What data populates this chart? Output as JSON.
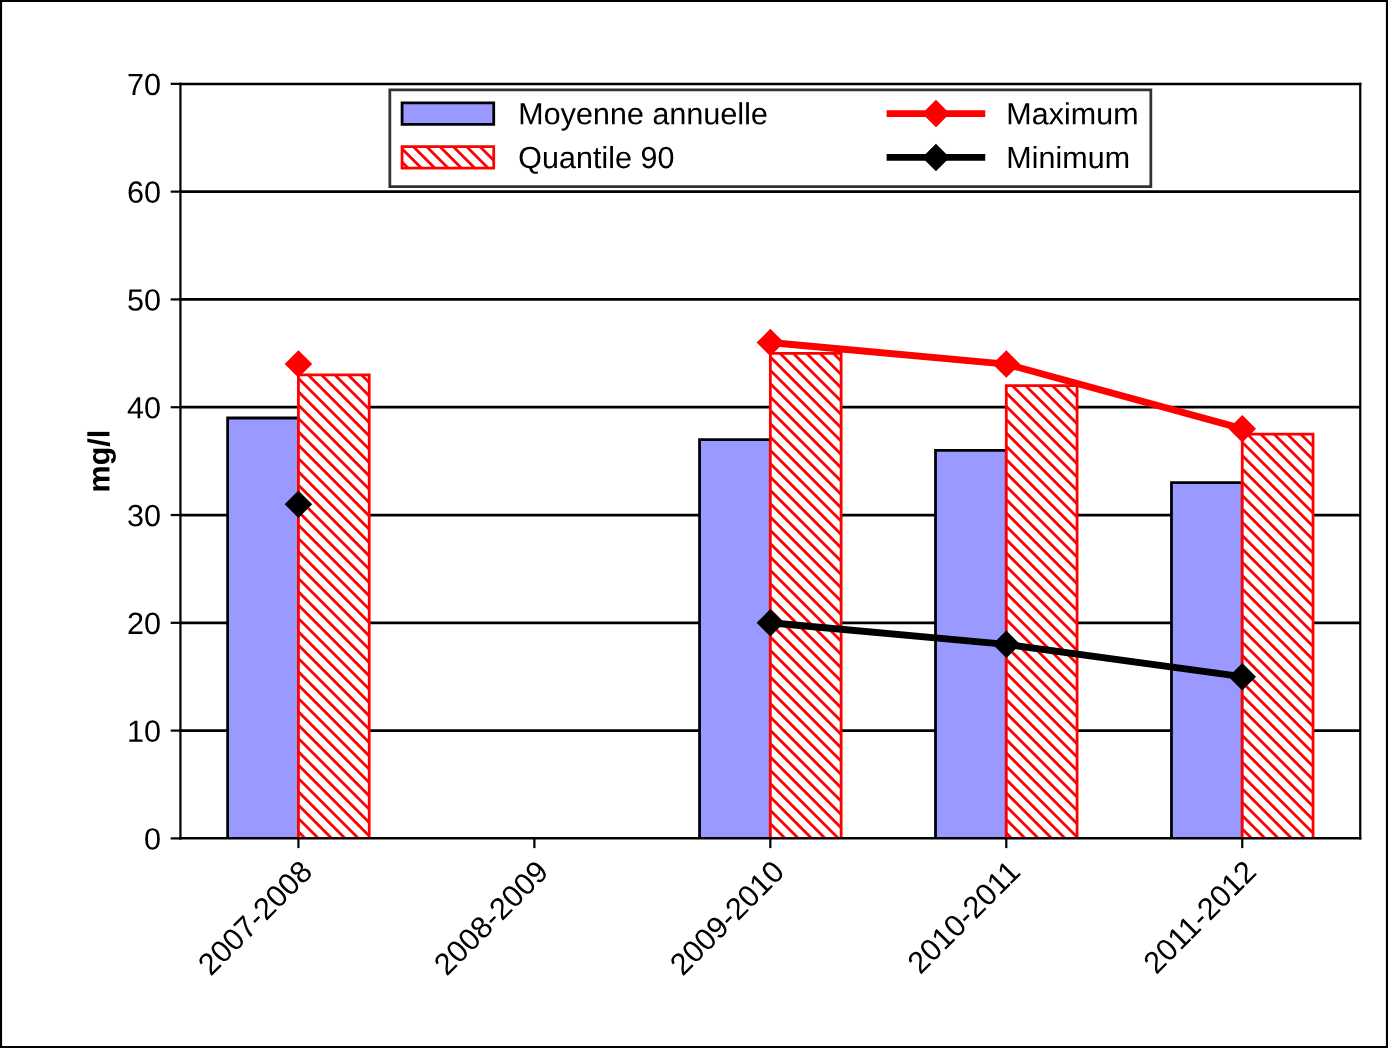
{
  "chart_data": {
    "type": "bar",
    "ylabel": "mg/l",
    "categories": [
      "2007-2008",
      "2008-2009",
      "2009-2010",
      "2010-2011",
      "2011-2012"
    ],
    "series": [
      {
        "name": "Moyenne annuelle",
        "color": "#9999ff",
        "values": [
          39,
          null,
          37,
          36,
          33
        ]
      },
      {
        "name": "Quantile 90",
        "color": "#ff0000",
        "values": [
          43,
          null,
          45,
          42,
          37.5
        ]
      },
      {
        "name": "Maximum",
        "type": "line",
        "color": "#ff0000",
        "marker": "diamond",
        "values": [
          44,
          null,
          46,
          44,
          38
        ]
      },
      {
        "name": "Minimum",
        "type": "line",
        "color": "#000000",
        "marker": "diamond",
        "values": [
          31,
          null,
          20,
          18,
          15
        ]
      }
    ],
    "ylim": [
      0,
      70
    ],
    "yticks": [
      0,
      10,
      20,
      30,
      40,
      50,
      60,
      70
    ],
    "grid": "y",
    "legend": "top"
  }
}
